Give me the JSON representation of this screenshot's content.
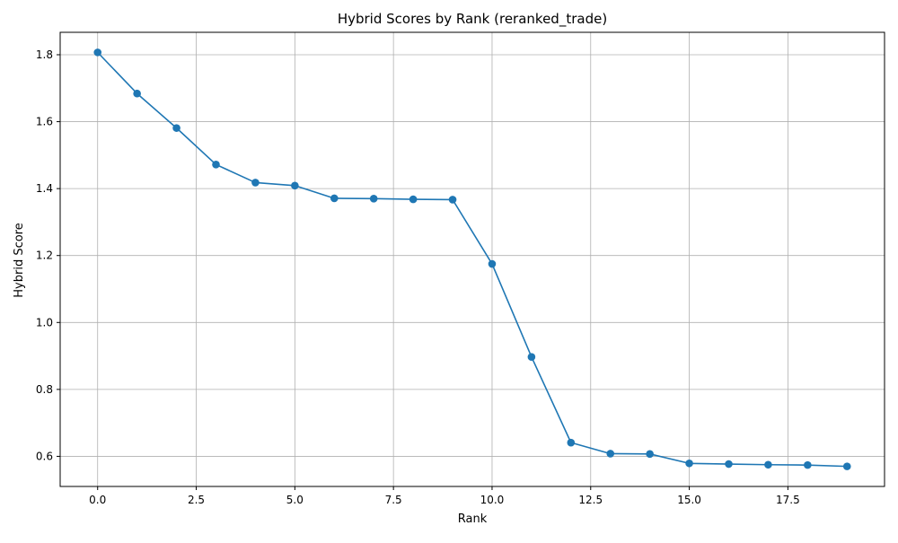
{
  "chart_data": {
    "type": "line",
    "title": "Hybrid Scores by Rank (reranked_trade)",
    "xlabel": "Rank",
    "ylabel": "Hybrid Score",
    "x": [
      0,
      1,
      2,
      3,
      4,
      5,
      6,
      7,
      8,
      9,
      10,
      11,
      12,
      13,
      14,
      15,
      16,
      17,
      18,
      19
    ],
    "series": [
      {
        "values": [
          1.807,
          1.684,
          1.581,
          1.472,
          1.418,
          1.409,
          1.371,
          1.37,
          1.368,
          1.367,
          1.175,
          0.897,
          0.641,
          0.608,
          0.607,
          0.579,
          0.577,
          0.575,
          0.574,
          0.57
        ],
        "color": "#1f77b4",
        "marker": "circle"
      }
    ],
    "xlim": [
      -0.95,
      19.95
    ],
    "ylim": [
      0.51,
      1.867
    ],
    "xticks": [
      0.0,
      2.5,
      5.0,
      7.5,
      10.0,
      12.5,
      15.0,
      17.5
    ],
    "xtick_labels": [
      "0.0",
      "2.5",
      "5.0",
      "7.5",
      "10.0",
      "12.5",
      "15.0",
      "17.5"
    ],
    "yticks": [
      0.6,
      0.8,
      1.0,
      1.2,
      1.4,
      1.6,
      1.8
    ],
    "ytick_labels": [
      "0.6",
      "0.8",
      "1.0",
      "1.2",
      "1.4",
      "1.6",
      "1.8"
    ],
    "grid": true,
    "grid_color": "#b0b0b0",
    "legend": "none"
  }
}
